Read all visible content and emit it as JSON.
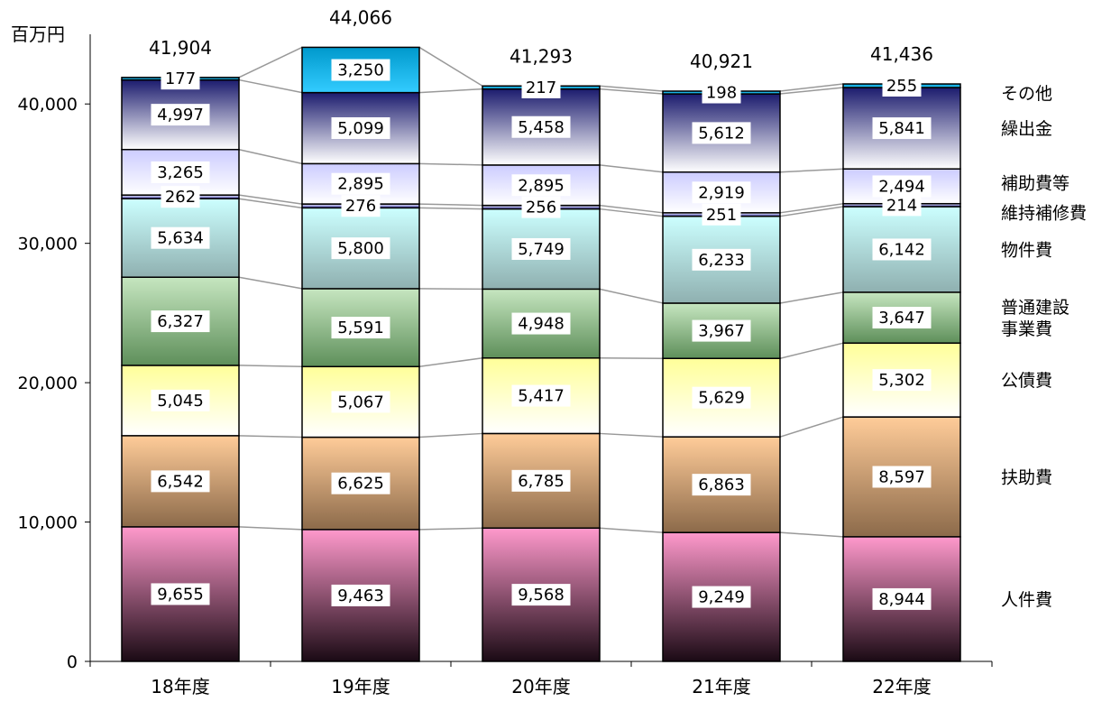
{
  "chart_data": {
    "type": "bar",
    "stacked": true,
    "unit_label": "百万円",
    "categories": [
      "18年度",
      "19年度",
      "20年度",
      "21年度",
      "22年度"
    ],
    "ylim": [
      0,
      45000
    ],
    "yticks": [
      0,
      10000,
      20000,
      30000,
      40000
    ],
    "ytick_labels": [
      "0",
      "10,000",
      "20,000",
      "30,000",
      "40,000"
    ],
    "totals": [
      41904,
      44066,
      41293,
      40921,
      41436
    ],
    "total_labels": [
      "41,904",
      "44,066",
      "41,293",
      "40,921",
      "41,436"
    ],
    "grid": false,
    "legend": "right",
    "series": [
      {
        "name": "人件費",
        "legend_lines": [
          "人件費"
        ],
        "values": [
          9655,
          9463,
          9568,
          9249,
          8944
        ],
        "labels": [
          "9,655",
          "9,463",
          "9,568",
          "9,249",
          "8,944"
        ],
        "color_top": "#ff99cc",
        "color_bottom": "#1a0a14"
      },
      {
        "name": "扶助費",
        "legend_lines": [
          "扶助費"
        ],
        "values": [
          6542,
          6625,
          6785,
          6863,
          8597
        ],
        "labels": [
          "6,542",
          "6,625",
          "6,785",
          "6,863",
          "8,597"
        ],
        "color_top": "#ffcc99",
        "color_bottom": "#8c6a4a"
      },
      {
        "name": "公債費",
        "legend_lines": [
          "公債費"
        ],
        "values": [
          5045,
          5067,
          5417,
          5629,
          5302
        ],
        "labels": [
          "5,045",
          "5,067",
          "5,417",
          "5,629",
          "5,302"
        ],
        "color_top": "#ffff99",
        "color_bottom": "#ffffff"
      },
      {
        "name": "普通建設事業費",
        "legend_lines": [
          "普通建設",
          "事業費"
        ],
        "values": [
          6327,
          5591,
          4948,
          3967,
          3647
        ],
        "labels": [
          "6,327",
          "5,591",
          "4,948",
          "3,967",
          "3,647"
        ],
        "color_top": "#c6e6c0",
        "color_bottom": "#5e8f5a"
      },
      {
        "name": "物件費",
        "legend_lines": [
          "物件費"
        ],
        "values": [
          5634,
          5800,
          5749,
          6233,
          6142
        ],
        "labels": [
          "5,634",
          "5,800",
          "5,749",
          "6,233",
          "6,142"
        ],
        "color_top": "#ccffff",
        "color_bottom": "#8fb0b0"
      },
      {
        "name": "維持補修費",
        "legend_lines": [
          "維持補修費"
        ],
        "values": [
          262,
          276,
          256,
          251,
          214
        ],
        "labels": [
          "262",
          "276",
          "256",
          "251",
          "214"
        ],
        "color_top": "#ffffff",
        "color_bottom": "#3333aa"
      },
      {
        "name": "補助費等",
        "legend_lines": [
          "補助費等"
        ],
        "values": [
          3265,
          2895,
          2895,
          2919,
          2494
        ],
        "labels": [
          "3,265",
          "2,895",
          "2,895",
          "2,919",
          "2,494"
        ],
        "color_top": "#ccccff",
        "color_bottom": "#ffffff"
      },
      {
        "name": "繰出金",
        "legend_lines": [
          "繰出金"
        ],
        "values": [
          4997,
          5099,
          5458,
          5612,
          5841
        ],
        "labels": [
          "4,997",
          "5,099",
          "5,458",
          "5,612",
          "5,841"
        ],
        "color_top": "#1c1c6e",
        "color_bottom": "#ffffff"
      },
      {
        "name": "その他",
        "legend_lines": [
          "その他"
        ],
        "values": [
          177,
          3250,
          217,
          198,
          255
        ],
        "labels": [
          "177",
          "3,250",
          "217",
          "198",
          "255"
        ],
        "color_top": "#0099cc",
        "color_bottom": "#33ccff"
      }
    ]
  }
}
